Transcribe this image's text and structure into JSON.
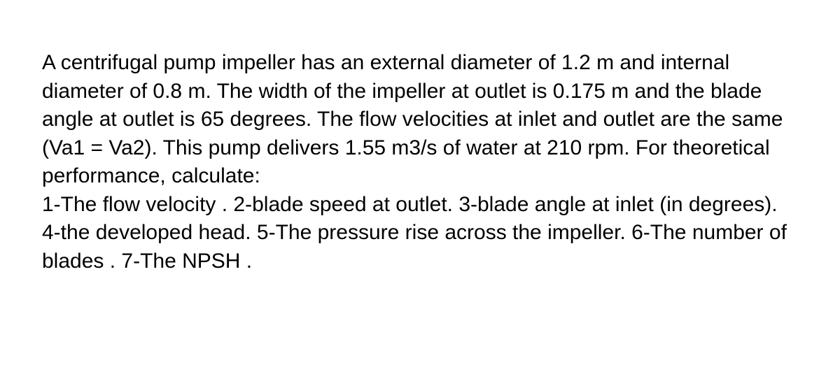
{
  "problem": {
    "text": "A centrifugal pump impeller has an external diameter of 1.2 m and internal diameter of 0.8 m. The width of the impeller at outlet is 0.175 m and the blade angle at outlet is 65 degrees. The flow velocities at inlet and outlet are the same (Va1 = Va2). This pump delivers 1.55 m3/s of water at 210 rpm. For theoretical performance, calculate:\n1-The flow velocity . 2-blade speed at outlet. 3-blade angle at inlet (in degrees). 4-the developed head. 5-The pressure rise across the impeller. 6-The number of blades . 7-The NPSH .",
    "font_size": 30,
    "line_height": 1.35,
    "text_color": "#000000",
    "background_color": "#ffffff"
  }
}
